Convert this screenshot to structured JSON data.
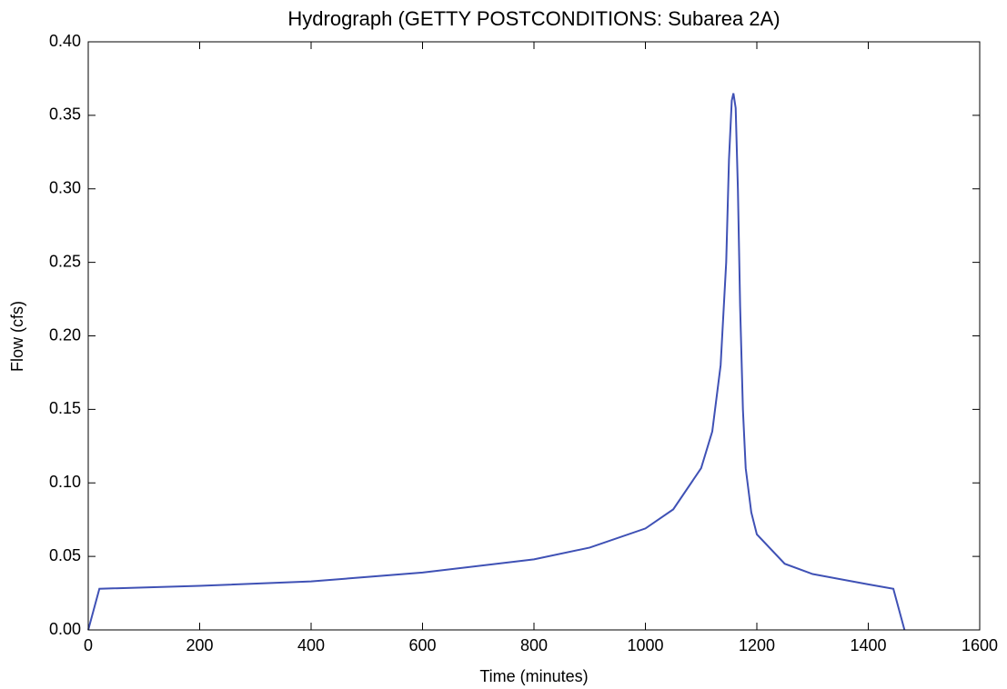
{
  "chart_data": {
    "type": "line",
    "title": "Hydrograph (GETTY POSTCONDITIONS: Subarea 2A)",
    "x_label": "Time (minutes)",
    "y_label": "Flow (cfs)",
    "xlim": [
      0,
      1600
    ],
    "ylim": [
      0,
      0.4
    ],
    "xticks": [
      0,
      200,
      400,
      600,
      800,
      1000,
      1200,
      1400,
      1600
    ],
    "yticks": [
      {
        "value": 0,
        "label": "0.00"
      },
      {
        "value": 0.05,
        "label": "0.05"
      },
      {
        "value": 0.1,
        "label": "0.10"
      },
      {
        "value": 0.15,
        "label": "0.15"
      },
      {
        "value": 0.2,
        "label": "0.20"
      },
      {
        "value": 0.25,
        "label": "0.25"
      },
      {
        "value": 0.3,
        "label": "0.30"
      },
      {
        "value": 0.35,
        "label": "0.35"
      },
      {
        "value": 0.4,
        "label": "0.40"
      }
    ],
    "grid": false,
    "series": [
      {
        "name": "Flow",
        "color": "#3f51b5",
        "x": [
          0,
          20,
          200,
          400,
          600,
          800,
          900,
          1000,
          1050,
          1100,
          1120,
          1135,
          1145,
          1150,
          1155,
          1158,
          1162,
          1166,
          1170,
          1175,
          1180,
          1190,
          1200,
          1250,
          1300,
          1400,
          1445,
          1465
        ],
        "values": [
          0,
          0.028,
          0.03,
          0.033,
          0.039,
          0.048,
          0.056,
          0.069,
          0.082,
          0.11,
          0.135,
          0.18,
          0.25,
          0.32,
          0.36,
          0.365,
          0.355,
          0.3,
          0.22,
          0.15,
          0.11,
          0.08,
          0.065,
          0.045,
          0.038,
          0.031,
          0.028,
          0
        ]
      }
    ]
  }
}
